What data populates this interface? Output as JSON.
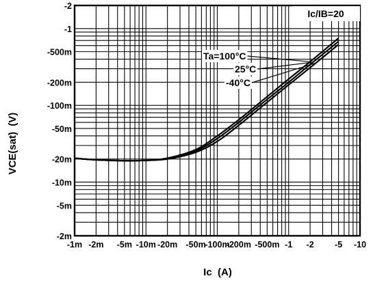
{
  "chart_data": {
    "type": "line",
    "title": "",
    "condition_label": "Ic/IB=20",
    "xlabel": "Ic  (A)",
    "ylabel": "VCE(sat)  (V)",
    "x_scale": "log",
    "y_scale": "log",
    "xlim": [
      0.001,
      10
    ],
    "ylim": [
      0.002,
      2
    ],
    "grid": true,
    "x_ticks": [
      {
        "value": 0.001,
        "label": "-1m"
      },
      {
        "value": 0.002,
        "label": "-2m"
      },
      {
        "value": 0.005,
        "label": "-5m"
      },
      {
        "value": 0.01,
        "label": "-10m"
      },
      {
        "value": 0.02,
        "label": "-20m"
      },
      {
        "value": 0.05,
        "label": "-50m"
      },
      {
        "value": 0.1,
        "label": "-100m"
      },
      {
        "value": 0.2,
        "label": "-200m"
      },
      {
        "value": 0.5,
        "label": "-500m"
      },
      {
        "value": 1,
        "label": "-1"
      },
      {
        "value": 2,
        "label": "-2"
      },
      {
        "value": 5,
        "label": "-5"
      },
      {
        "value": 10,
        "label": "-10"
      }
    ],
    "y_ticks": [
      {
        "value": 0.002,
        "label": "-2m"
      },
      {
        "value": 0.005,
        "label": "-5m"
      },
      {
        "value": 0.01,
        "label": "-10m"
      },
      {
        "value": 0.02,
        "label": "-20m"
      },
      {
        "value": 0.05,
        "label": "-50m"
      },
      {
        "value": 0.1,
        "label": "-100m"
      },
      {
        "value": 0.2,
        "label": "-200m"
      },
      {
        "value": 0.5,
        "label": "-500m"
      },
      {
        "value": 1,
        "label": "-1"
      },
      {
        "value": 2,
        "label": "-2"
      }
    ],
    "series": [
      {
        "name": "Ta=100°C",
        "x": [
          0.001,
          0.002,
          0.005,
          0.01,
          0.02,
          0.05,
          0.1,
          0.2,
          0.5,
          1,
          2,
          5
        ],
        "y": [
          0.0205,
          0.0195,
          0.019,
          0.0192,
          0.0205,
          0.0265,
          0.04,
          0.065,
          0.13,
          0.22,
          0.37,
          0.75
        ]
      },
      {
        "name": "25°C",
        "x": [
          0.001,
          0.002,
          0.005,
          0.01,
          0.02,
          0.05,
          0.1,
          0.2,
          0.5,
          1,
          2,
          5
        ],
        "y": [
          0.0205,
          0.0195,
          0.019,
          0.0192,
          0.0203,
          0.0255,
          0.037,
          0.06,
          0.12,
          0.2,
          0.34,
          0.68
        ]
      },
      {
        "name": "-40°C",
        "x": [
          0.001,
          0.002,
          0.005,
          0.01,
          0.02,
          0.05,
          0.1,
          0.2,
          0.5,
          1,
          2,
          5
        ],
        "y": [
          0.0205,
          0.0195,
          0.019,
          0.0192,
          0.02,
          0.0245,
          0.034,
          0.055,
          0.11,
          0.185,
          0.31,
          0.62
        ]
      }
    ]
  }
}
